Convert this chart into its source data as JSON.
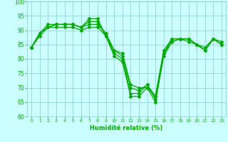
{
  "series": [
    [
      84,
      89,
      91,
      92,
      92,
      92,
      91,
      94,
      94,
      88,
      81,
      79,
      67,
      67,
      70,
      65,
      81,
      86,
      87,
      87,
      85,
      83,
      87,
      85
    ],
    [
      84,
      89,
      91,
      92,
      92,
      92,
      91,
      93,
      93,
      88,
      82,
      80,
      68,
      68,
      71,
      66,
      82,
      87,
      87,
      87,
      85,
      83,
      87,
      85
    ],
    [
      84,
      89,
      92,
      92,
      92,
      92,
      91,
      92,
      92,
      89,
      83,
      81,
      70,
      69,
      71,
      67,
      83,
      87,
      87,
      87,
      85,
      84,
      87,
      85
    ],
    [
      84,
      88,
      91,
      91,
      91,
      91,
      90,
      91,
      91,
      88,
      83,
      82,
      71,
      70,
      70,
      67,
      82,
      86,
      87,
      86,
      85,
      83,
      87,
      86
    ]
  ],
  "x": [
    0,
    1,
    2,
    3,
    4,
    5,
    6,
    7,
    8,
    9,
    10,
    11,
    12,
    13,
    14,
    15,
    16,
    17,
    18,
    19,
    20,
    21,
    22,
    23
  ],
  "xlabel": "Humidité relative (%)",
  "ylim": [
    60,
    100
  ],
  "yticks": [
    60,
    65,
    70,
    75,
    80,
    85,
    90,
    95,
    100
  ],
  "xticks": [
    0,
    1,
    2,
    3,
    4,
    5,
    6,
    7,
    8,
    9,
    10,
    11,
    12,
    13,
    14,
    15,
    16,
    17,
    18,
    19,
    20,
    21,
    22,
    23
  ],
  "line_color": "#00aa00",
  "bg_color": "#ccffff",
  "grid_color": "#88cccc",
  "marker": "D",
  "marker_size": 2,
  "linewidth": 0.9
}
